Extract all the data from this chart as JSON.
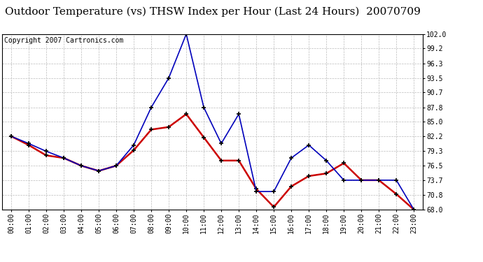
{
  "title": "Outdoor Temperature (vs) THSW Index per Hour (Last 24 Hours)  20070709",
  "copyright": "Copyright 2007 Cartronics.com",
  "hours": [
    "00:00",
    "01:00",
    "02:00",
    "03:00",
    "04:00",
    "05:00",
    "06:00",
    "07:00",
    "08:00",
    "09:00",
    "10:00",
    "11:00",
    "12:00",
    "13:00",
    "14:00",
    "15:00",
    "16:00",
    "17:00",
    "18:00",
    "19:00",
    "20:00",
    "21:00",
    "22:00",
    "23:00"
  ],
  "thsw": [
    82.2,
    80.8,
    79.3,
    78.0,
    76.5,
    75.5,
    76.5,
    80.5,
    87.8,
    93.5,
    102.0,
    87.8,
    80.8,
    86.5,
    71.5,
    71.5,
    78.0,
    80.5,
    77.5,
    73.7,
    73.7,
    73.7,
    73.7,
    68.0
  ],
  "temp": [
    82.2,
    80.5,
    78.5,
    78.0,
    76.5,
    75.5,
    76.5,
    79.5,
    83.5,
    84.0,
    86.5,
    82.0,
    77.5,
    77.5,
    72.0,
    68.5,
    72.5,
    74.5,
    75.0,
    77.0,
    73.7,
    73.7,
    71.0,
    68.0
  ],
  "ylim": [
    68.0,
    102.0
  ],
  "yticks": [
    68.0,
    70.8,
    73.7,
    76.5,
    79.3,
    82.2,
    85.0,
    87.8,
    90.7,
    93.5,
    96.3,
    99.2,
    102.0
  ],
  "thsw_color": "#0000bb",
  "temp_color": "#cc0000",
  "grid_color": "#bbbbbb",
  "bg_color": "#ffffff",
  "title_fontsize": 11,
  "copyright_fontsize": 7,
  "tick_fontsize": 7
}
